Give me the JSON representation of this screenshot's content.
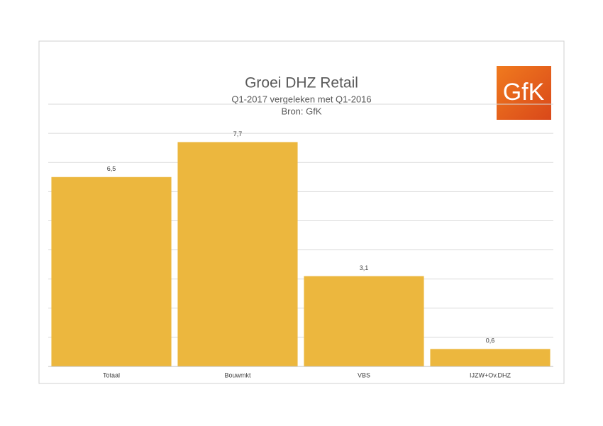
{
  "chart_data": {
    "type": "bar",
    "title": "Groei DHZ Retail",
    "subtitle": "Q1-2017 vergeleken met Q1-2016",
    "source": "Bron: GfK",
    "logo": "GfK",
    "categories": [
      "Totaal",
      "Bouwmkt",
      "VBS",
      "IJZW+Ov.DHZ"
    ],
    "values": [
      6.5,
      7.7,
      3.1,
      0.6
    ],
    "value_labels": [
      "6,5",
      "7,7",
      "3,1",
      "0,6"
    ],
    "color": "#ecb73e",
    "ylim": [
      0,
      9
    ],
    "yticks": [
      0,
      1,
      2,
      3,
      4,
      5,
      6,
      7,
      8,
      9
    ],
    "grid": true
  }
}
